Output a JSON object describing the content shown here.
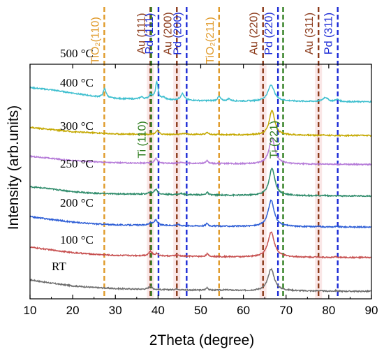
{
  "chart_data": {
    "type": "line",
    "title": "",
    "xlabel": "2Theta (degree)",
    "ylabel": "Intensity (arb.units)",
    "xlim": [
      10,
      90
    ],
    "xticks": [
      10,
      20,
      30,
      40,
      50,
      60,
      70,
      80,
      90
    ],
    "grid": false,
    "legend": "none",
    "offset_stack": true,
    "series": [
      {
        "name": "RT",
        "color": "#6e6e6e",
        "baseline": 0,
        "background": [
          [
            10,
            22
          ],
          [
            15,
            16
          ],
          [
            20,
            11
          ],
          [
            25,
            8
          ],
          [
            30,
            6
          ],
          [
            40,
            4
          ],
          [
            50,
            3
          ],
          [
            60,
            2
          ],
          [
            70,
            2
          ],
          [
            80,
            1
          ],
          [
            90,
            1
          ]
        ],
        "peaks": [
          [
            38.2,
            6,
            0.5
          ],
          [
            44.4,
            2,
            0.5
          ],
          [
            51.5,
            5,
            0.3
          ],
          [
            56,
            1,
            1.5
          ],
          [
            66.5,
            40,
            0.9
          ],
          [
            77.6,
            1,
            0.5
          ],
          [
            81.7,
            1,
            0.5
          ]
        ]
      },
      {
        "name": "100 °C",
        "color": "#c75050",
        "baseline": 62,
        "background": [
          [
            10,
            20
          ],
          [
            15,
            15
          ],
          [
            20,
            10
          ],
          [
            25,
            7
          ],
          [
            30,
            5
          ],
          [
            40,
            4
          ],
          [
            50,
            3
          ],
          [
            60,
            2
          ],
          [
            70,
            2
          ],
          [
            80,
            1
          ],
          [
            90,
            1
          ]
        ],
        "peaks": [
          [
            38.2,
            8,
            0.5
          ],
          [
            39.7,
            4,
            0.4
          ],
          [
            44.4,
            2,
            0.5
          ],
          [
            51.5,
            5,
            0.3
          ],
          [
            66.5,
            46,
            0.9
          ],
          [
            77.6,
            1,
            0.5
          ],
          [
            81.7,
            1,
            0.5
          ]
        ]
      },
      {
        "name": "200 °C",
        "color": "#2f5fd6",
        "baseline": 118,
        "background": [
          [
            10,
            20
          ],
          [
            15,
            15
          ],
          [
            20,
            10
          ],
          [
            25,
            7
          ],
          [
            30,
            5
          ],
          [
            40,
            4
          ],
          [
            50,
            3
          ],
          [
            60,
            2
          ],
          [
            70,
            2
          ],
          [
            80,
            1
          ],
          [
            90,
            1
          ]
        ],
        "peaks": [
          [
            38.2,
            4,
            0.5
          ],
          [
            39.5,
            10,
            0.45
          ],
          [
            44.6,
            2,
            0.5
          ],
          [
            51.5,
            5,
            0.3
          ],
          [
            66.5,
            48,
            0.85
          ],
          [
            77.8,
            1,
            0.5
          ],
          [
            81.9,
            1,
            0.5
          ]
        ]
      },
      {
        "name": "250 °C",
        "color": "#2e8b6a",
        "baseline": 175,
        "background": [
          [
            10,
            18
          ],
          [
            15,
            14
          ],
          [
            20,
            9
          ],
          [
            25,
            6
          ],
          [
            30,
            5
          ],
          [
            40,
            4
          ],
          [
            50,
            3
          ],
          [
            60,
            2
          ],
          [
            70,
            2
          ],
          [
            80,
            1
          ],
          [
            90,
            1
          ]
        ],
        "peaks": [
          [
            38.2,
            3,
            0.5
          ],
          [
            39.5,
            9,
            0.45
          ],
          [
            45.5,
            2,
            0.6
          ],
          [
            51.5,
            5,
            0.3
          ],
          [
            66.7,
            50,
            0.8
          ],
          [
            79,
            1,
            0.6
          ]
        ]
      },
      {
        "name": "300 °C",
        "color": "#b57ad8",
        "baseline": 233,
        "background": [
          [
            10,
            16
          ],
          [
            15,
            12
          ],
          [
            20,
            8
          ],
          [
            25,
            6
          ],
          [
            30,
            4
          ],
          [
            40,
            3
          ],
          [
            50,
            3
          ],
          [
            60,
            2
          ],
          [
            70,
            2
          ],
          [
            80,
            1
          ],
          [
            90,
            1
          ]
        ],
        "peaks": [
          [
            39.5,
            9,
            0.45
          ],
          [
            45.5,
            2,
            0.6
          ],
          [
            51.5,
            5,
            0.3
          ],
          [
            66.7,
            48,
            0.8
          ],
          [
            79,
            1,
            0.6
          ]
        ]
      },
      {
        "name": "400 °C",
        "color": "#c4a800",
        "baseline": 286,
        "background": [
          [
            10,
            16
          ],
          [
            15,
            12
          ],
          [
            20,
            8
          ],
          [
            25,
            6
          ],
          [
            30,
            4
          ],
          [
            40,
            3
          ],
          [
            50,
            3
          ],
          [
            60,
            2
          ],
          [
            70,
            2
          ],
          [
            80,
            1
          ],
          [
            90,
            1
          ]
        ],
        "peaks": [
          [
            39.8,
            7,
            0.45
          ],
          [
            46.2,
            2,
            0.5
          ],
          [
            51.5,
            5,
            0.3
          ],
          [
            66.7,
            46,
            0.75
          ],
          [
            79,
            1,
            0.6
          ]
        ]
      },
      {
        "name": "500 °C",
        "color": "#3fbfcf",
        "baseline": 347,
        "background": [
          [
            10,
            28
          ],
          [
            15,
            24
          ],
          [
            20,
            18
          ],
          [
            25,
            12
          ],
          [
            30,
            8
          ],
          [
            40,
            6
          ],
          [
            50,
            4
          ],
          [
            60,
            3
          ],
          [
            70,
            3
          ],
          [
            80,
            2
          ],
          [
            90,
            2
          ]
        ],
        "peaks": [
          [
            27.5,
            16,
            0.4
          ],
          [
            36.1,
            4,
            0.4
          ],
          [
            38.3,
            8,
            0.5
          ],
          [
            39.7,
            32,
            0.35
          ],
          [
            41.3,
            4,
            0.4
          ],
          [
            45.7,
            12,
            0.5
          ],
          [
            54.3,
            8,
            0.4
          ],
          [
            56.6,
            4,
            0.4
          ],
          [
            66.5,
            30,
            0.9
          ],
          [
            79.2,
            8,
            0.7
          ],
          [
            82,
            4,
            0.6
          ]
        ]
      }
    ],
    "reference_lines": [
      {
        "x": 27.4,
        "color": "#e09a2a",
        "label": "TiO₂(110)"
      },
      {
        "x": 38.2,
        "color": "#8b3a1a",
        "label": "Au (111)"
      },
      {
        "x": 38.4,
        "color": "#2e7d1e",
        "label": "Ti (110)"
      },
      {
        "x": 40.1,
        "color": "#1c2bd6",
        "label": "Pd (111)"
      },
      {
        "x": 44.4,
        "color": "#8b3a1a",
        "label": "Au (200)"
      },
      {
        "x": 46.7,
        "color": "#1c2bd6",
        "label": "Pd (200)"
      },
      {
        "x": 54.3,
        "color": "#e09a2a",
        "label": "TiO₂(211)"
      },
      {
        "x": 64.6,
        "color": "#8b3a1a",
        "label": "Au (220)"
      },
      {
        "x": 68.1,
        "color": "#1c2bd6",
        "label": "Pd (220)"
      },
      {
        "x": 69.3,
        "color": "#2e7d1e",
        "label": "Ti (221)"
      },
      {
        "x": 77.6,
        "color": "#8b3a1a",
        "label": "Au (311)"
      },
      {
        "x": 82.1,
        "color": "#1c2bd6",
        "label": "Pd (311)"
      }
    ],
    "shaded_bands": [
      {
        "x": 38.2,
        "color": "#f6d3d3"
      },
      {
        "x": 44.4,
        "color": "#f6d3d3"
      },
      {
        "x": 64.6,
        "color": "#f6d3d3"
      },
      {
        "x": 77.6,
        "color": "#f6d3d3"
      }
    ]
  }
}
